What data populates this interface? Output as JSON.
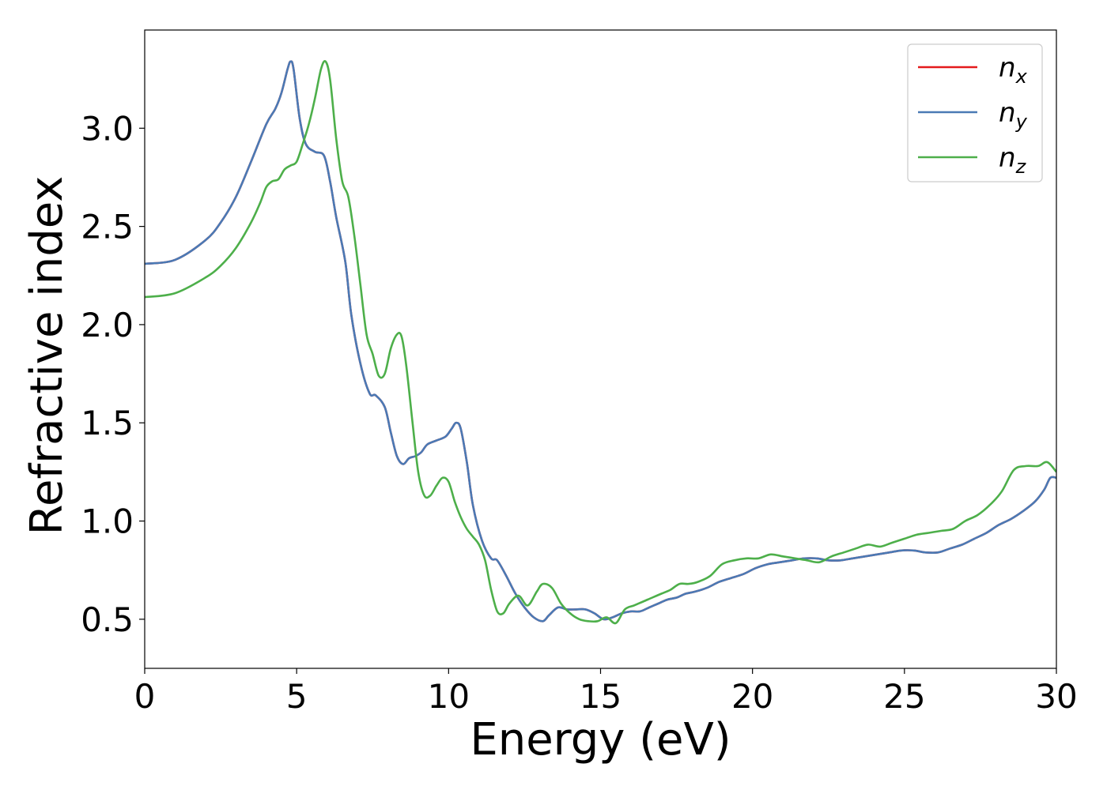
{
  "chart_data": {
    "type": "line",
    "xlabel": "Energy (eV)",
    "ylabel": "Refractive index",
    "xlim": [
      0,
      30
    ],
    "ylim": [
      0.25,
      3.5
    ],
    "xticks": [
      "0",
      "5",
      "10",
      "15",
      "20",
      "25",
      "30"
    ],
    "yticks": [
      "0.5",
      "1.0",
      "1.5",
      "2.0",
      "2.5",
      "3.0"
    ],
    "grid": false,
    "legend_position": "top-right",
    "series": [
      {
        "name": "n_x",
        "label_base": "n",
        "label_sub": "x",
        "color": "#e41a1c",
        "x": [
          0,
          1,
          2,
          2.5,
          3,
          3.5,
          4,
          4.3,
          4.5,
          4.7,
          4.8,
          4.9,
          5.1,
          5.3,
          5.6,
          5.9,
          6.1,
          6.3,
          6.6,
          6.8,
          7.1,
          7.4,
          7.6,
          7.9,
          8.1,
          8.3,
          8.5,
          8.7,
          8.9,
          9.1,
          9.3,
          9.6,
          9.9,
          10.1,
          10.25,
          10.4,
          10.6,
          10.8,
          11.1,
          11.4,
          11.6,
          11.9,
          12.2,
          12.5,
          12.8,
          13.1,
          13.3,
          13.6,
          13.9,
          14.2,
          14.5,
          14.8,
          15.1,
          15.4,
          15.7,
          16.0,
          16.3,
          16.6,
          16.9,
          17.2,
          17.5,
          17.8,
          18.1,
          18.5,
          18.9,
          19.3,
          19.7,
          20.1,
          20.5,
          20.9,
          21.3,
          21.7,
          22.1,
          22.5,
          22.9,
          23.3,
          23.7,
          24.1,
          24.5,
          24.9,
          25.3,
          25.7,
          26.1,
          26.5,
          26.9,
          27.3,
          27.7,
          28.1,
          28.5,
          28.9,
          29.3,
          29.6,
          29.8,
          30.0
        ],
        "y": [
          2.31,
          2.33,
          2.43,
          2.52,
          2.65,
          2.83,
          3.02,
          3.1,
          3.18,
          3.3,
          3.34,
          3.3,
          3.05,
          2.92,
          2.88,
          2.86,
          2.73,
          2.55,
          2.32,
          2.05,
          1.8,
          1.65,
          1.64,
          1.58,
          1.45,
          1.33,
          1.29,
          1.32,
          1.33,
          1.35,
          1.39,
          1.41,
          1.43,
          1.47,
          1.5,
          1.47,
          1.3,
          1.08,
          0.9,
          0.81,
          0.8,
          0.72,
          0.63,
          0.56,
          0.51,
          0.49,
          0.52,
          0.56,
          0.55,
          0.55,
          0.55,
          0.53,
          0.5,
          0.51,
          0.53,
          0.54,
          0.54,
          0.56,
          0.58,
          0.6,
          0.61,
          0.63,
          0.64,
          0.66,
          0.69,
          0.71,
          0.73,
          0.76,
          0.78,
          0.79,
          0.8,
          0.81,
          0.81,
          0.8,
          0.8,
          0.81,
          0.82,
          0.83,
          0.84,
          0.85,
          0.85,
          0.84,
          0.84,
          0.86,
          0.88,
          0.91,
          0.94,
          0.98,
          1.01,
          1.05,
          1.1,
          1.16,
          1.22,
          1.22
        ]
      },
      {
        "name": "n_y",
        "label_base": "n",
        "label_sub": "y",
        "color": "#4a7ab5",
        "x": [
          0,
          1,
          2,
          2.5,
          3,
          3.5,
          4,
          4.3,
          4.5,
          4.7,
          4.8,
          4.9,
          5.1,
          5.3,
          5.6,
          5.9,
          6.1,
          6.3,
          6.6,
          6.8,
          7.1,
          7.4,
          7.6,
          7.9,
          8.1,
          8.3,
          8.5,
          8.7,
          8.9,
          9.1,
          9.3,
          9.6,
          9.9,
          10.1,
          10.25,
          10.4,
          10.6,
          10.8,
          11.1,
          11.4,
          11.6,
          11.9,
          12.2,
          12.5,
          12.8,
          13.1,
          13.3,
          13.6,
          13.9,
          14.2,
          14.5,
          14.8,
          15.1,
          15.4,
          15.7,
          16.0,
          16.3,
          16.6,
          16.9,
          17.2,
          17.5,
          17.8,
          18.1,
          18.5,
          18.9,
          19.3,
          19.7,
          20.1,
          20.5,
          20.9,
          21.3,
          21.7,
          22.1,
          22.5,
          22.9,
          23.3,
          23.7,
          24.1,
          24.5,
          24.9,
          25.3,
          25.7,
          26.1,
          26.5,
          26.9,
          27.3,
          27.7,
          28.1,
          28.5,
          28.9,
          29.3,
          29.6,
          29.8,
          30.0
        ],
        "y": [
          2.31,
          2.33,
          2.43,
          2.52,
          2.65,
          2.83,
          3.02,
          3.1,
          3.18,
          3.3,
          3.34,
          3.3,
          3.05,
          2.92,
          2.88,
          2.86,
          2.73,
          2.55,
          2.32,
          2.05,
          1.8,
          1.65,
          1.64,
          1.58,
          1.45,
          1.33,
          1.29,
          1.32,
          1.33,
          1.35,
          1.39,
          1.41,
          1.43,
          1.47,
          1.5,
          1.47,
          1.3,
          1.08,
          0.9,
          0.81,
          0.8,
          0.72,
          0.63,
          0.56,
          0.51,
          0.49,
          0.52,
          0.56,
          0.55,
          0.55,
          0.55,
          0.53,
          0.5,
          0.51,
          0.53,
          0.54,
          0.54,
          0.56,
          0.58,
          0.6,
          0.61,
          0.63,
          0.64,
          0.66,
          0.69,
          0.71,
          0.73,
          0.76,
          0.78,
          0.79,
          0.8,
          0.81,
          0.81,
          0.8,
          0.8,
          0.81,
          0.82,
          0.83,
          0.84,
          0.85,
          0.85,
          0.84,
          0.84,
          0.86,
          0.88,
          0.91,
          0.94,
          0.98,
          1.01,
          1.05,
          1.1,
          1.16,
          1.22,
          1.22
        ]
      },
      {
        "name": "n_z",
        "label_base": "n",
        "label_sub": "z",
        "color": "#4daf4a",
        "x": [
          0,
          1,
          2,
          2.5,
          3,
          3.5,
          3.8,
          4.0,
          4.2,
          4.4,
          4.6,
          4.8,
          5.0,
          5.2,
          5.4,
          5.6,
          5.8,
          5.95,
          6.1,
          6.3,
          6.5,
          6.7,
          6.9,
          7.1,
          7.3,
          7.5,
          7.7,
          7.9,
          8.1,
          8.3,
          8.45,
          8.6,
          8.8,
          9.0,
          9.2,
          9.4,
          9.6,
          9.8,
          10.0,
          10.2,
          10.4,
          10.6,
          10.8,
          11.0,
          11.2,
          11.4,
          11.6,
          11.8,
          12.0,
          12.3,
          12.6,
          12.9,
          13.1,
          13.4,
          13.7,
          14.0,
          14.3,
          14.6,
          14.9,
          15.2,
          15.5,
          15.8,
          16.1,
          16.4,
          16.7,
          17.0,
          17.3,
          17.6,
          17.9,
          18.2,
          18.6,
          19.0,
          19.4,
          19.8,
          20.2,
          20.6,
          21.0,
          21.4,
          21.8,
          22.2,
          22.6,
          23.0,
          23.4,
          23.8,
          24.2,
          24.6,
          25.0,
          25.4,
          25.8,
          26.2,
          26.6,
          27.0,
          27.4,
          27.8,
          28.2,
          28.6,
          29.0,
          29.4,
          29.7,
          30.0
        ],
        "y": [
          2.14,
          2.16,
          2.24,
          2.3,
          2.39,
          2.52,
          2.62,
          2.7,
          2.73,
          2.74,
          2.79,
          2.81,
          2.83,
          2.92,
          3.02,
          3.15,
          3.3,
          3.34,
          3.25,
          2.95,
          2.73,
          2.65,
          2.45,
          2.2,
          1.95,
          1.85,
          1.74,
          1.75,
          1.88,
          1.95,
          1.94,
          1.8,
          1.52,
          1.25,
          1.13,
          1.13,
          1.18,
          1.22,
          1.2,
          1.1,
          1.02,
          0.96,
          0.92,
          0.88,
          0.8,
          0.65,
          0.54,
          0.53,
          0.58,
          0.62,
          0.57,
          0.64,
          0.68,
          0.66,
          0.58,
          0.53,
          0.5,
          0.49,
          0.49,
          0.51,
          0.48,
          0.55,
          0.57,
          0.59,
          0.61,
          0.63,
          0.65,
          0.68,
          0.68,
          0.69,
          0.72,
          0.78,
          0.8,
          0.81,
          0.81,
          0.83,
          0.82,
          0.81,
          0.8,
          0.79,
          0.82,
          0.84,
          0.86,
          0.88,
          0.87,
          0.89,
          0.91,
          0.93,
          0.94,
          0.95,
          0.96,
          1.0,
          1.03,
          1.08,
          1.15,
          1.26,
          1.28,
          1.28,
          1.3,
          1.25
        ]
      }
    ]
  }
}
